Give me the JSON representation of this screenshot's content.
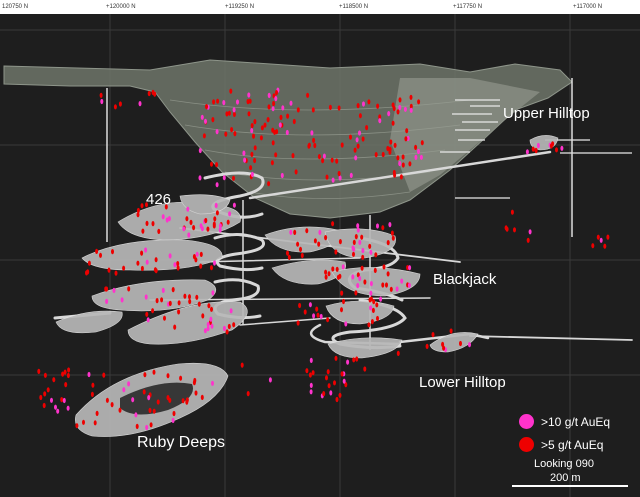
{
  "axis": {
    "ticks": [
      "120750 N",
      "+120000 N",
      "+119250 N",
      "+118500 N",
      "+117750 N",
      "+117000 N"
    ]
  },
  "labels": {
    "zone_426": "426",
    "upper_hilltop": "Upper Hilltop",
    "blackjack": "Blackjack",
    "lower_hilltop": "Lower Hilltop",
    "ruby_deeps": "Ruby Deeps"
  },
  "legend": {
    "high_grade": {
      "label": ">10 g/t AuEq",
      "color": "#ff33cc"
    },
    "mid_grade": {
      "label": ">5 g/t AuEq",
      "color": "#ee0000"
    }
  },
  "footer": {
    "view_direction": "Looking 090",
    "scale_text": "200 m"
  },
  "colors": {
    "background": "#1e1e1e",
    "pit": "#6f766a",
    "orebody": "#b8b8b8",
    "workings": "#d8d8d8"
  }
}
